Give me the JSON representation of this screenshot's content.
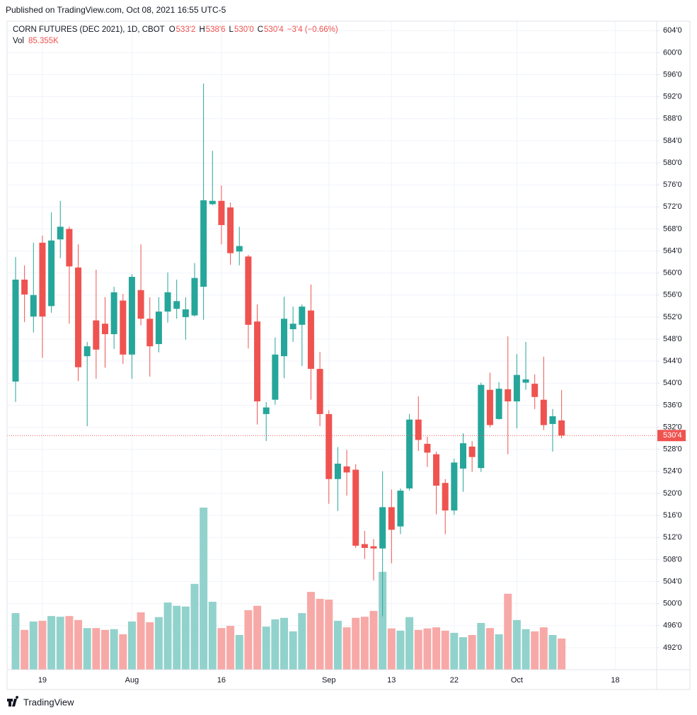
{
  "published": "Published on TradingView.com, Oct 08, 2021 16:55 UTC-5",
  "footer": "TradingView",
  "chart_data": {
    "type": "candlestick",
    "legend": {
      "symbol": "CORN FUTURES (DEC 2021), 1D, CBOT",
      "fields": [
        {
          "key": "O",
          "value": "533'2"
        },
        {
          "key": "H",
          "value": "538'6"
        },
        {
          "key": "L",
          "value": "530'0"
        },
        {
          "key": "C",
          "value": "530'4"
        }
      ],
      "change": "−3'4 (−0.66%)"
    },
    "volume_legend": {
      "key": "Vol",
      "value": "85.355K"
    },
    "up_color": "#26a69a",
    "down_color": "#ef5350",
    "volume_up_color": "#92d2cc",
    "volume_down_color": "#f7a9a7",
    "categories": [
      null,
      null,
      null,
      "19",
      null,
      null,
      null,
      null,
      null,
      null,
      null,
      null,
      null,
      "Aug",
      null,
      null,
      null,
      null,
      null,
      null,
      null,
      null,
      null,
      "16",
      null,
      null,
      null,
      null,
      null,
      null,
      null,
      null,
      null,
      null,
      null,
      "Sep",
      null,
      null,
      null,
      null,
      null,
      null,
      "13",
      null,
      null,
      null,
      null,
      null,
      null,
      "22",
      null,
      null,
      null,
      null,
      null,
      null,
      "Oct",
      null,
      null,
      null,
      null,
      null,
      null,
      null,
      null,
      null,
      null,
      "18"
    ],
    "open": [
      540.3,
      558.8,
      552.1,
      565.5,
      554.0,
      566.1,
      568.0,
      561.0,
      544.9,
      551.4,
      550.8,
      548.9,
      555.0,
      545.2,
      556.9,
      551.7,
      547.1,
      553.0,
      553.5,
      552.0,
      552.3,
      557.5,
      572.5,
      573.1,
      571.9,
      563.9,
      563.0,
      551.2,
      534.4,
      537.0,
      544.9,
      549.8,
      550.6,
      553.2,
      542.6,
      534.4,
      522.6,
      524.9,
      524.3,
      510.8,
      510.4,
      510.0,
      517.5,
      514.0,
      520.9,
      533.4,
      529.0,
      527.1,
      521.9,
      516.9,
      524.5,
      528.5,
      524.6,
      538.8,
      533.5,
      538.9,
      536.7,
      540.1,
      539.9,
      537.0,
      532.6,
      533.25,
      null,
      null,
      null,
      null,
      null,
      null
    ],
    "high": [
      562.9,
      561.4,
      565.5,
      566.8,
      571.0,
      573.1,
      568.4,
      565.2,
      547.5,
      560.6,
      555.6,
      557.5,
      556.2,
      559.8,
      565.2,
      555.6,
      555.6,
      560.1,
      558.8,
      555.6,
      561.8,
      594.4,
      582.2,
      575.9,
      572.8,
      568.4,
      563.3,
      554.3,
      536.6,
      548.3,
      555.7,
      553.9,
      554.3,
      557.9,
      545.7,
      535.1,
      528.4,
      527.9,
      525.3,
      513.2,
      511.7,
      524.0,
      520.7,
      520.9,
      534.4,
      537.6,
      530.3,
      527.6,
      522.6,
      526.3,
      530.9,
      529.5,
      540.1,
      541.9,
      540.2,
      548.5,
      545.3,
      547.5,
      541.6,
      544.8,
      535.3,
      538.75,
      null,
      null,
      null,
      null,
      null,
      null
    ],
    "low": [
      536.6,
      551.1,
      549.2,
      544.6,
      552.8,
      562.7,
      550.8,
      540.4,
      532.2,
      540.8,
      542.8,
      546.2,
      543.5,
      540.8,
      550.5,
      541.2,
      545.6,
      551.0,
      551.7,
      547.9,
      552.1,
      551.5,
      572.3,
      565.2,
      561.5,
      561.4,
      546.3,
      532.5,
      529.5,
      536.1,
      540.9,
      547.5,
      543.1,
      537.0,
      532.2,
      518.1,
      516.8,
      519.6,
      510.1,
      508.1,
      504.2,
      497.7,
      507.3,
      512.6,
      520.5,
      527.7,
      524.8,
      516.2,
      512.6,
      516.1,
      520.3,
      523.9,
      523.9,
      532.0,
      533.4,
      527.1,
      531.8,
      538.8,
      535.3,
      531.5,
      527.6,
      530.0,
      null,
      null,
      null,
      null,
      null,
      null
    ],
    "close": [
      558.8,
      556.1,
      556.0,
      552.1,
      565.9,
      568.4,
      561.2,
      542.9,
      546.7,
      546.1,
      548.9,
      556.5,
      545.2,
      559.3,
      551.7,
      546.7,
      553.0,
      556.5,
      554.9,
      553.4,
      559.1,
      573.2,
      573.1,
      568.7,
      563.6,
      564.9,
      550.6,
      536.7,
      535.6,
      545.2,
      551.7,
      550.8,
      553.9,
      542.6,
      534.4,
      522.6,
      525.4,
      523.8,
      510.5,
      510.1,
      510.0,
      517.5,
      513.4,
      520.5,
      533.4,
      529.7,
      527.4,
      521.4,
      516.9,
      525.6,
      529.1,
      526.6,
      539.7,
      532.4,
      539.0,
      536.7,
      541.5,
      540.7,
      537.5,
      532.4,
      534.0,
      530.5,
      null,
      null,
      null,
      null,
      null,
      null
    ],
    "volume": [
      155,
      109,
      132,
      134,
      147,
      145,
      147,
      136,
      114,
      114,
      109,
      111,
      97,
      132,
      157,
      130,
      144,
      184,
      175,
      173,
      235,
      444,
      186,
      114,
      120,
      95,
      163,
      175,
      118,
      138,
      142,
      105,
      155,
      213,
      194,
      192,
      134,
      116,
      142,
      145,
      161,
      268,
      113,
      107,
      144,
      109,
      113,
      116,
      107,
      101,
      89,
      95,
      128,
      114,
      97,
      208,
      136,
      111,
      105,
      116,
      95,
      85.355,
      null,
      null,
      null,
      null,
      null,
      null
    ],
    "ylim": [
      488.0,
      605.7
    ],
    "yticks": [
      {
        "value": 604,
        "label": "604'0"
      },
      {
        "value": 600,
        "label": "600'0"
      },
      {
        "value": 596,
        "label": "596'0"
      },
      {
        "value": 592,
        "label": "592'0"
      },
      {
        "value": 588,
        "label": "588'0"
      },
      {
        "value": 584,
        "label": "584'0"
      },
      {
        "value": 580,
        "label": "580'0"
      },
      {
        "value": 576,
        "label": "576'0"
      },
      {
        "value": 572,
        "label": "572'0"
      },
      {
        "value": 568,
        "label": "568'0"
      },
      {
        "value": 564,
        "label": "564'0"
      },
      {
        "value": 560,
        "label": "560'0"
      },
      {
        "value": 556,
        "label": "556'0"
      },
      {
        "value": 552,
        "label": "552'0"
      },
      {
        "value": 548,
        "label": "548'0"
      },
      {
        "value": 544,
        "label": "544'0"
      },
      {
        "value": 540,
        "label": "540'0"
      },
      {
        "value": 536,
        "label": "536'0"
      },
      {
        "value": 532,
        "label": "532'0"
      },
      {
        "value": 528,
        "label": "528'0"
      },
      {
        "value": 524,
        "label": "524'0"
      },
      {
        "value": 520,
        "label": "520'0"
      },
      {
        "value": 516,
        "label": "516'0"
      },
      {
        "value": 512,
        "label": "512'0"
      },
      {
        "value": 508,
        "label": "508'0"
      },
      {
        "value": 504,
        "label": "504'0"
      },
      {
        "value": 500,
        "label": "500'0"
      },
      {
        "value": 496,
        "label": "496'0"
      },
      {
        "value": 492,
        "label": "492'0"
      }
    ],
    "grid": true
  }
}
